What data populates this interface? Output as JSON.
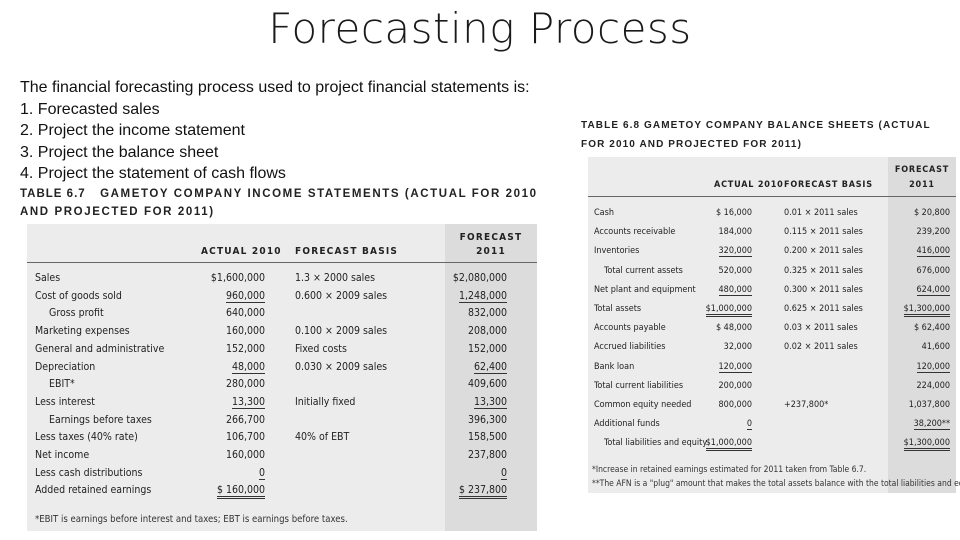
{
  "slide": {
    "title": "Forecasting Process",
    "intro": "The financial forecasting process used to project financial statements is:",
    "steps": [
      "1. Forecasted sales",
      "2. Project the income statement",
      "3. Project the balance sheet",
      "4. Project the statement of cash flows"
    ]
  },
  "table67": {
    "caption_num": "TABLE 6.7",
    "caption_text": "GAMETOY COMPANY INCOME STATEMENTS (ACTUAL FOR 2010 AND PROJECTED FOR 2011)",
    "headers": {
      "actual": "ACTUAL 2010",
      "basis": "FORECAST BASIS",
      "forecast_top": "FORECAST",
      "forecast_year": "2011"
    },
    "rows": [
      {
        "label": "Sales",
        "actual": "$1,600,000",
        "basis": "1.3 × 2000 sales",
        "forecast": "$2,080,000"
      },
      {
        "label": "Cost of goods sold",
        "actual": "960,000",
        "basis": "0.600 × 2009 sales",
        "forecast": "1,248,000"
      },
      {
        "label": "Gross profit",
        "actual": "640,000",
        "basis": "",
        "forecast": "832,000"
      },
      {
        "label": "Marketing expenses",
        "actual": "160,000",
        "basis": "0.100 × 2009 sales",
        "forecast": "208,000"
      },
      {
        "label": "General and administrative",
        "actual": "152,000",
        "basis": "Fixed costs",
        "forecast": "152,000"
      },
      {
        "label": "Depreciation",
        "actual": "48,000",
        "basis": "0.030 × 2009 sales",
        "forecast": "62,400"
      },
      {
        "label": "EBIT*",
        "actual": "280,000",
        "basis": "",
        "forecast": "409,600"
      },
      {
        "label": "Less interest",
        "actual": "13,300",
        "basis": "Initially fixed",
        "forecast": "13,300"
      },
      {
        "label": "Earnings before taxes",
        "actual": "266,700",
        "basis": "",
        "forecast": "396,300"
      },
      {
        "label": "Less taxes (40% rate)",
        "actual": "106,700",
        "basis": "40% of EBT",
        "forecast": "158,500"
      },
      {
        "label": "Net income",
        "actual": "160,000",
        "basis": "",
        "forecast": "237,800"
      },
      {
        "label": "Less cash distributions",
        "actual": "0",
        "basis": "",
        "forecast": "0"
      },
      {
        "label": "Added retained earnings",
        "actual": "$ 160,000",
        "basis": "",
        "forecast": "$ 237,800"
      }
    ],
    "footnote": "*EBIT is earnings before interest and taxes; EBT is earnings before taxes."
  },
  "table68": {
    "caption": "TABLE 6.8  GAMETOY COMPANY BALANCE SHEETS (ACTUAL FOR 2010 AND PROJECTED FOR 2011)",
    "headers": {
      "actual": "ACTUAL 2010",
      "basis": "FORECAST BASIS",
      "forecast_top": "FORECAST",
      "forecast_year": "2011"
    },
    "rows": [
      {
        "label": "Cash",
        "actual": "$ 16,000",
        "basis": "0.01 × 2011 sales",
        "forecast": "$ 20,800"
      },
      {
        "label": "Accounts receivable",
        "actual": "184,000",
        "basis": "0.115 × 2011 sales",
        "forecast": "239,200"
      },
      {
        "label": "Inventories",
        "actual": "320,000",
        "basis": "0.200 × 2011 sales",
        "forecast": "416,000"
      },
      {
        "label": "Total current assets",
        "actual": "520,000",
        "basis": "0.325 × 2011 sales",
        "forecast": "676,000"
      },
      {
        "label": "Net plant and equipment",
        "actual": "480,000",
        "basis": "0.300 × 2011 sales",
        "forecast": "624,000"
      },
      {
        "label": "Total assets",
        "actual": "$1,000,000",
        "basis": "0.625 × 2011 sales",
        "forecast": "$1,300,000"
      },
      {
        "label": "Accounts payable",
        "actual": "$ 48,000",
        "basis": "0.03 × 2011 sales",
        "forecast": "$ 62,400"
      },
      {
        "label": "Accrued liabilities",
        "actual": "32,000",
        "basis": "0.02 × 2011 sales",
        "forecast": "41,600"
      },
      {
        "label": "Bank loan",
        "actual": "120,000",
        "basis": "",
        "forecast": "120,000"
      },
      {
        "label": "Total current liabilities",
        "actual": "200,000",
        "basis": "",
        "forecast": "224,000"
      },
      {
        "label": "Common equity needed",
        "actual": "800,000",
        "basis": "+237,800*",
        "forecast": "1,037,800"
      },
      {
        "label": "Additional funds",
        "actual": "0",
        "basis": "",
        "forecast": "38,200**"
      },
      {
        "label": "Total liabilities and equity",
        "actual": "$1,000,000",
        "basis": "",
        "forecast": "$1,300,000"
      }
    ],
    "note1": "*Increase in retained earnings estimated for 2011 taken from Table 6.7.",
    "note2": "**The AFN is a \"plug\" amount that makes the total assets balance with the total liabilities and equity."
  }
}
